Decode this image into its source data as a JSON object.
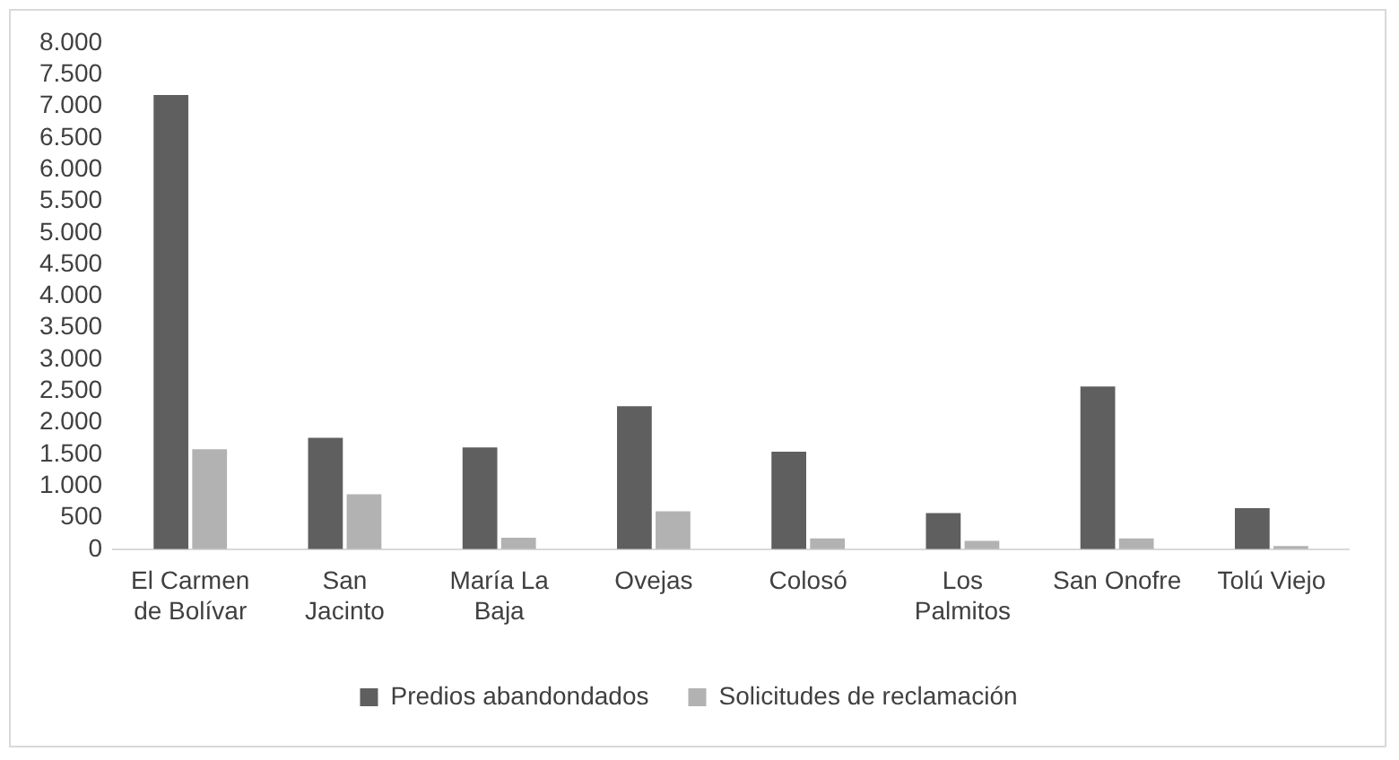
{
  "chart_data": {
    "type": "bar",
    "categories": [
      "El Carmen de Bolívar",
      "San Jacinto",
      "María La Baja",
      "Ovejas",
      "Colosó",
      "Los Palmitos",
      "San Onofre",
      "Tolú Viejo"
    ],
    "series": [
      {
        "name": "Predios abandondados",
        "color": "#5f5f5f",
        "values": [
          7180,
          1760,
          1610,
          2260,
          1540,
          570,
          2570,
          650
        ]
      },
      {
        "name": "Solicitudes de reclamación",
        "color": "#b2b2b2",
        "values": [
          1580,
          870,
          180,
          600,
          170,
          130,
          170,
          50
        ]
      }
    ],
    "ylim": [
      0,
      8000
    ],
    "yticks": [
      0,
      {
        "value": 500,
        "label": "500"
      },
      {
        "value": 1000,
        "label": "1.000"
      },
      {
        "value": 1500,
        "label": "1.500"
      },
      {
        "value": 2000,
        "label": "2.000"
      },
      {
        "value": 2500,
        "label": "2.500"
      },
      {
        "value": 3000,
        "label": "3.000"
      },
      {
        "value": 3500,
        "label": "3.500"
      },
      {
        "value": 4000,
        "label": "4.000"
      },
      {
        "value": 4500,
        "label": "4.500"
      },
      {
        "value": 5000,
        "label": "5.000"
      },
      {
        "value": 5500,
        "label": "5.500"
      },
      {
        "value": 6000,
        "label": "6.000"
      },
      {
        "value": 6500,
        "label": "6.500"
      },
      {
        "value": 7000,
        "label": "7.000"
      },
      {
        "value": 7500,
        "label": "7.500"
      },
      {
        "value": 8000,
        "label": "8.000"
      }
    ],
    "grid": false,
    "legend": "bottom"
  }
}
